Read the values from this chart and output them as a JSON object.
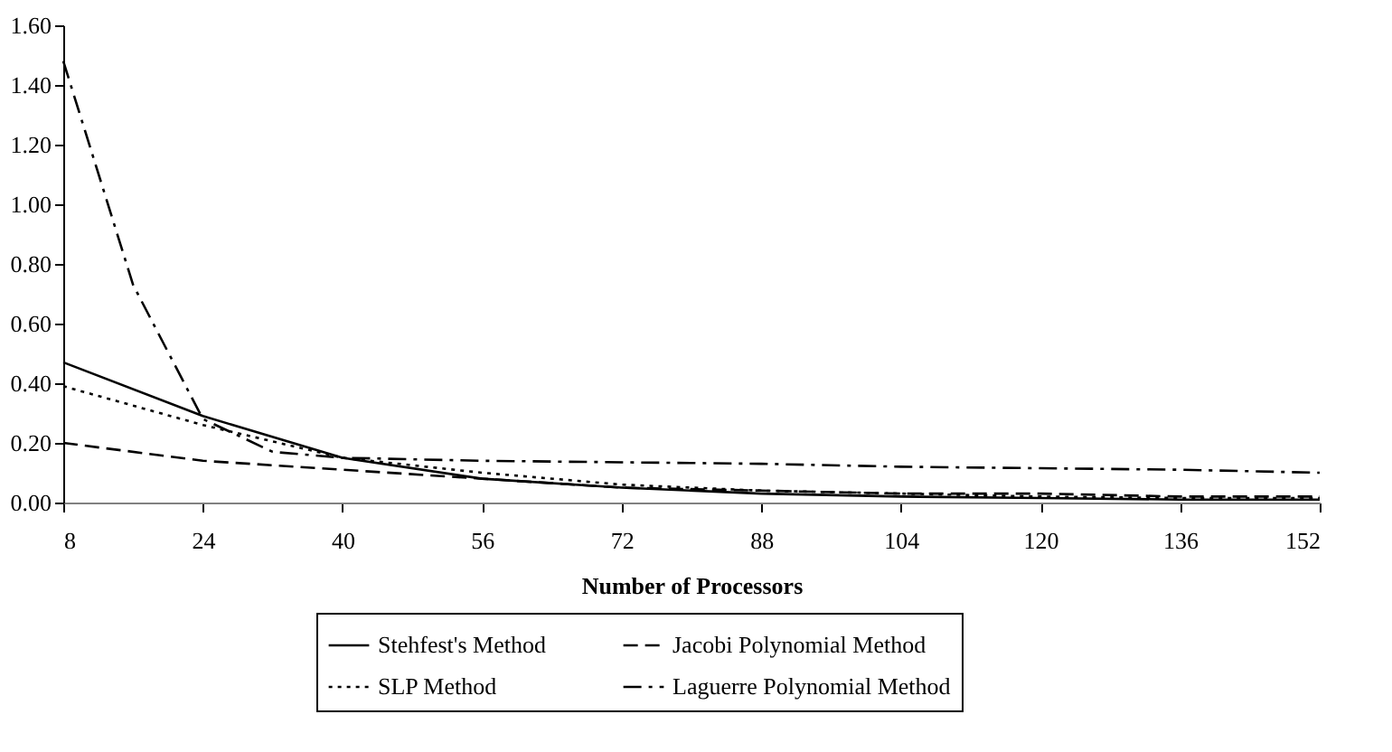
{
  "chart_data": {
    "type": "line",
    "xlabel": "Number of Processors",
    "x": [
      8,
      24,
      40,
      56,
      72,
      88,
      104,
      120,
      136,
      152
    ],
    "series": [
      {
        "name": "Stehfest's Method",
        "color": "#000000",
        "line_style": "solid",
        "values": [
          0.47,
          0.29,
          0.15,
          0.08,
          0.05,
          0.03,
          0.02,
          0.015,
          0.01,
          0.01
        ]
      },
      {
        "name": "SLP Method",
        "color": "#000000",
        "line_style": "dotted",
        "values": [
          0.39,
          0.26,
          0.15,
          0.1,
          0.06,
          0.04,
          0.03,
          0.02,
          0.015,
          0.015
        ]
      },
      {
        "name": "Jacobi Polynomial Method",
        "color": "#000000",
        "line_style": "dashed",
        "values": [
          0.2,
          0.14,
          0.11,
          0.08,
          0.05,
          0.04,
          0.03,
          0.03,
          0.02,
          0.02
        ]
      },
      {
        "name": "Laguerre Polynomial Method",
        "color": "#000000",
        "line_style": "dashdot",
        "x": [
          8,
          16,
          24,
          32,
          40,
          56,
          72,
          88,
          104,
          120,
          136,
          152
        ],
        "values": [
          1.48,
          0.73,
          0.28,
          0.17,
          0.15,
          0.14,
          0.135,
          0.13,
          0.12,
          0.115,
          0.11,
          0.1
        ]
      }
    ],
    "xlim": [
      8,
      152
    ],
    "xticks": [
      8,
      24,
      40,
      56,
      72,
      88,
      104,
      120,
      136,
      152
    ],
    "ylim": [
      0,
      1.6
    ],
    "yticks": [
      {
        "value": 0,
        "label": "0.00"
      },
      {
        "value": 0.2,
        "label": "0.20"
      },
      {
        "value": 0.4,
        "label": "0.40"
      },
      {
        "value": 0.6,
        "label": "0.60"
      },
      {
        "value": 0.8,
        "label": "0.80"
      },
      {
        "value": 1.0,
        "label": "1.00"
      },
      {
        "value": 1.2,
        "label": "1.20"
      },
      {
        "value": 1.4,
        "label": "1.40"
      },
      {
        "value": 1.6,
        "label": "1.60"
      }
    ],
    "grid": false,
    "legend": "bottom"
  }
}
